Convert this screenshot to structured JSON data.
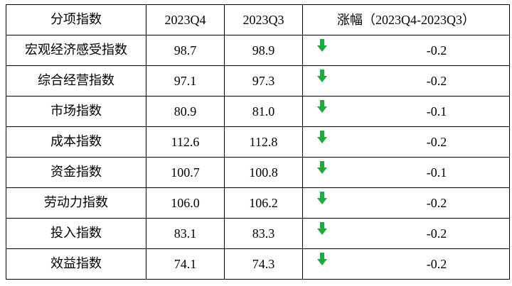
{
  "header": {
    "name": "分项指数",
    "q4": "2023Q4",
    "q3": "2023Q3",
    "change_label": "涨幅",
    "change_range": "（2023Q4-2023Q3）"
  },
  "arrow_icon": "down-arrow-icon",
  "arrow_color": "#1faa3c",
  "rows": [
    {
      "name": "宏观经济感受指数",
      "q4": "98.7",
      "q3": "98.9",
      "change": "-0.2"
    },
    {
      "name": "综合经营指数",
      "q4": "97.1",
      "q3": "97.3",
      "change": "-0.2"
    },
    {
      "name": "市场指数",
      "q4": "80.9",
      "q3": "81.0",
      "change": "-0.1"
    },
    {
      "name": "成本指数",
      "q4": "112.6",
      "q3": "112.8",
      "change": "-0.2"
    },
    {
      "name": "资金指数",
      "q4": "100.7",
      "q3": "100.8",
      "change": "-0.1"
    },
    {
      "name": "劳动力指数",
      "q4": "106.0",
      "q3": "106.2",
      "change": "-0.2"
    },
    {
      "name": "投入指数",
      "q4": "83.1",
      "q3": "83.3",
      "change": "-0.2"
    },
    {
      "name": "效益指数",
      "q4": "74.1",
      "q3": "74.3",
      "change": "-0.2"
    }
  ]
}
